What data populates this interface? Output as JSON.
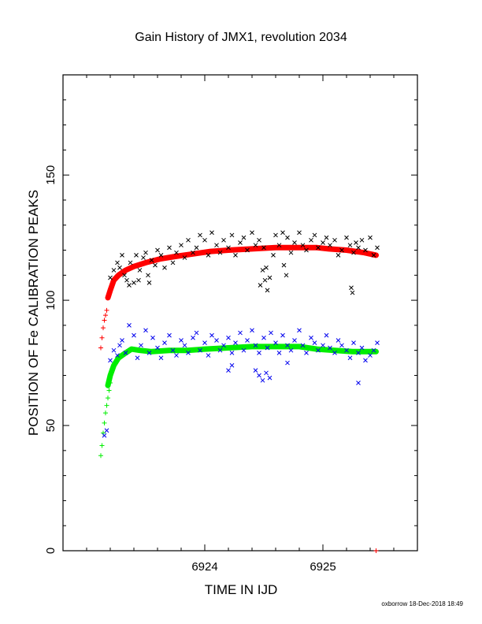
{
  "chart_data": {
    "type": "scatter",
    "title": "Gain History of JMX1, revolution 2034",
    "xlabel": "TIME IN IJD",
    "ylabel": "POSITION OF Fe CALIBRATION PEAKS",
    "xlim": [
      6922.8,
      6925.8
    ],
    "ylim": [
      0,
      190
    ],
    "x_ticks": [
      {
        "value": 6924,
        "label": "6924"
      },
      {
        "value": 6925,
        "label": "6925"
      }
    ],
    "y_ticks": [
      {
        "value": 0,
        "label": "0"
      },
      {
        "value": 50,
        "label": "50"
      },
      {
        "value": 100,
        "label": "100"
      },
      {
        "value": 150,
        "label": "150"
      }
    ],
    "grid": false,
    "colors": {
      "upper_fit": "#ff0000",
      "lower_fit": "#00ee00",
      "upper_points": "#000000",
      "lower_points": "#0000ee"
    },
    "series": [
      {
        "color": "#ff0000",
        "marker": "plus",
        "x": [
          6923.12,
          6923.13,
          6923.14,
          6923.15,
          6923.16,
          6923.17,
          6925.45
        ],
        "y": [
          81,
          85,
          89,
          92,
          94,
          96,
          0
        ]
      },
      {
        "color": "#00ee00",
        "marker": "plus",
        "x": [
          6923.12,
          6923.13,
          6923.14,
          6923.15,
          6923.16,
          6923.17,
          6923.18,
          6923.19,
          6923.2
        ],
        "y": [
          38,
          42,
          47,
          51,
          55,
          58,
          61,
          64,
          67
        ]
      },
      {
        "color": "#ff0000",
        "marker": "thick-line",
        "x": [
          6923.18,
          6923.2,
          6923.23,
          6923.27,
          6923.33,
          6923.4,
          6923.5,
          6923.62,
          6923.75,
          6923.9,
          6924.05,
          6924.2,
          6924.4,
          6924.6,
          6924.8,
          6924.95,
          6925.05,
          6925.2,
          6925.35,
          6925.45
        ],
        "y": [
          101,
          104,
          108,
          110,
          112,
          113.5,
          115,
          116.5,
          117.5,
          118.5,
          119.5,
          120,
          120.5,
          121,
          121,
          121,
          120.5,
          120,
          119,
          118
        ]
      },
      {
        "color": "#00ee00",
        "marker": "thick-line",
        "x": [
          6923.18,
          6923.2,
          6923.23,
          6923.27,
          6923.33,
          6923.38,
          6923.45,
          6923.55,
          6923.7,
          6923.85,
          6924.0,
          6924.2,
          6924.4,
          6924.6,
          6924.8,
          6924.95,
          6925.1,
          6925.25,
          6925.45
        ],
        "y": [
          66,
          70,
          74,
          77,
          79,
          80.5,
          80,
          79.5,
          80,
          80,
          80.5,
          81,
          81.5,
          81.5,
          81.5,
          80.5,
          80,
          79.5,
          79.5
        ]
      },
      {
        "color": "#000000",
        "marker": "cross",
        "x": [
          6923.2,
          6923.23,
          6923.26,
          6923.28,
          6923.3,
          6923.32,
          6923.34,
          6923.37,
          6923.4,
          6923.42,
          6923.45,
          6923.48,
          6923.5,
          6923.52,
          6923.55,
          6923.58,
          6923.6,
          6923.63,
          6923.66,
          6923.7,
          6923.73,
          6923.76,
          6923.8,
          6923.83,
          6923.86,
          6923.9,
          6923.93,
          6923.96,
          6924.0,
          6924.03,
          6924.06,
          6924.1,
          6924.13,
          6924.16,
          6924.2,
          6924.23,
          6924.26,
          6924.3,
          6924.33,
          6924.36,
          6924.4,
          6924.43,
          6924.46,
          6924.5,
          6924.52,
          6924.55,
          6924.58,
          6924.6,
          6924.63,
          6924.66,
          6924.7,
          6924.73,
          6924.76,
          6924.8,
          6924.83,
          6924.86,
          6924.9,
          6924.93,
          6924.96,
          6925.0,
          6925.03,
          6925.06,
          6925.1,
          6925.13,
          6925.16,
          6925.2,
          6925.23,
          6925.26,
          6925.28,
          6925.3,
          6925.33,
          6925.36,
          6925.4,
          6925.43,
          6925.46,
          6923.36,
          6923.44,
          6923.53,
          6924.47,
          6924.49,
          6924.51,
          6924.53,
          6924.67,
          6924.69,
          6925.24,
          6925.25
        ],
        "y": [
          109,
          112,
          115,
          113,
          118,
          110,
          108,
          115,
          107,
          118,
          112,
          117,
          119,
          110,
          116,
          114,
          120,
          118,
          113,
          121,
          115,
          119,
          122,
          117,
          124,
          119,
          121,
          126,
          124,
          118,
          127,
          122,
          119,
          124,
          121,
          126,
          118,
          123,
          125,
          120,
          127,
          122,
          124,
          121,
          113,
          109,
          118,
          126,
          122,
          127,
          125,
          119,
          123,
          127,
          122,
          120,
          124,
          126,
          121,
          123,
          125,
          122,
          124,
          118,
          120,
          125,
          122,
          119,
          123,
          121,
          124,
          120,
          125,
          118,
          121,
          106,
          108,
          107,
          106,
          112,
          108,
          104,
          114,
          110,
          105,
          103
        ]
      },
      {
        "color": "#0000ee",
        "marker": "cross",
        "x": [
          6923.2,
          6923.23,
          6923.26,
          6923.28,
          6923.3,
          6923.33,
          6923.36,
          6923.4,
          6923.43,
          6923.46,
          6923.5,
          6923.53,
          6923.56,
          6923.6,
          6923.63,
          6923.66,
          6923.7,
          6923.73,
          6923.76,
          6923.8,
          6923.83,
          6923.86,
          6923.9,
          6923.93,
          6923.96,
          6924.0,
          6924.03,
          6924.06,
          6924.1,
          6924.13,
          6924.16,
          6924.2,
          6924.23,
          6924.26,
          6924.3,
          6924.33,
          6924.36,
          6924.4,
          6924.43,
          6924.46,
          6924.5,
          6924.53,
          6924.56,
          6924.6,
          6924.63,
          6924.66,
          6924.7,
          6924.73,
          6924.76,
          6924.8,
          6924.83,
          6924.86,
          6924.9,
          6924.93,
          6924.96,
          6925.0,
          6925.03,
          6925.06,
          6925.1,
          6925.13,
          6925.16,
          6925.2,
          6925.23,
          6925.26,
          6925.3,
          6925.33,
          6925.36,
          6925.4,
          6925.43,
          6925.46,
          6924.2,
          6924.23,
          6924.43,
          6924.46,
          6924.49,
          6924.52,
          6924.55,
          6924.7,
          6925.3,
          6923.15,
          6923.17
        ],
        "y": [
          76,
          80,
          78,
          82,
          84,
          79,
          90,
          86,
          77,
          82,
          88,
          79,
          85,
          81,
          77,
          83,
          86,
          80,
          78,
          84,
          82,
          79,
          85,
          87,
          80,
          83,
          78,
          86,
          84,
          80,
          82,
          85,
          79,
          83,
          87,
          80,
          84,
          88,
          82,
          79,
          85,
          81,
          87,
          83,
          79,
          86,
          82,
          80,
          84,
          88,
          82,
          79,
          85,
          83,
          80,
          82,
          86,
          81,
          79,
          84,
          82,
          80,
          77,
          83,
          79,
          81,
          76,
          78,
          80,
          83,
          72,
          74,
          72,
          70,
          68,
          71,
          69,
          75,
          67,
          46,
          48
        ]
      }
    ]
  },
  "footer": "oxborrow 18-Dec-2018 18:49"
}
